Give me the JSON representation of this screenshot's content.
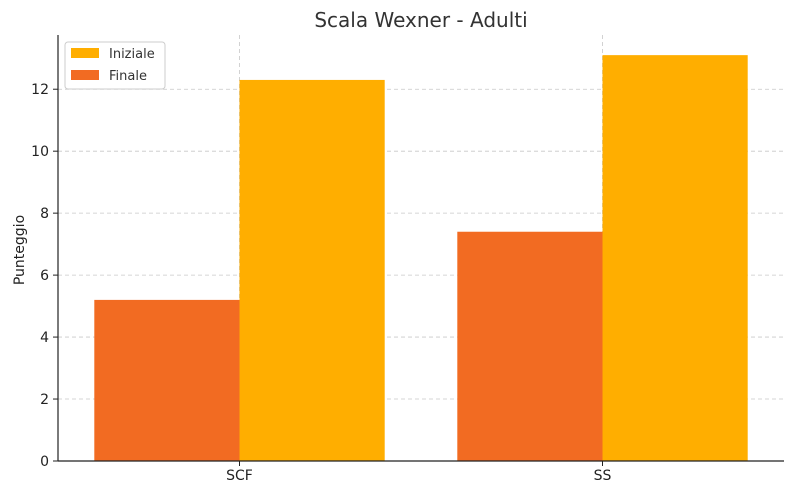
{
  "chart_data": {
    "type": "bar",
    "title": "Scala Wexner - Adulti",
    "xlabel": "",
    "ylabel": "Punteggio",
    "categories": [
      "SCF",
      "SS"
    ],
    "series": [
      {
        "name": "Finale",
        "values": [
          5.2,
          7.4
        ],
        "color": "#F26B22"
      },
      {
        "name": "Iniziale",
        "values": [
          12.3,
          13.1
        ],
        "color": "#FFAE00"
      }
    ],
    "legend_order": [
      "Iniziale",
      "Finale"
    ],
    "ylim": [
      0,
      13.75
    ],
    "yticks": [
      0,
      2,
      4,
      6,
      8,
      10,
      12
    ],
    "grid": true,
    "legend_position": "top-left"
  }
}
